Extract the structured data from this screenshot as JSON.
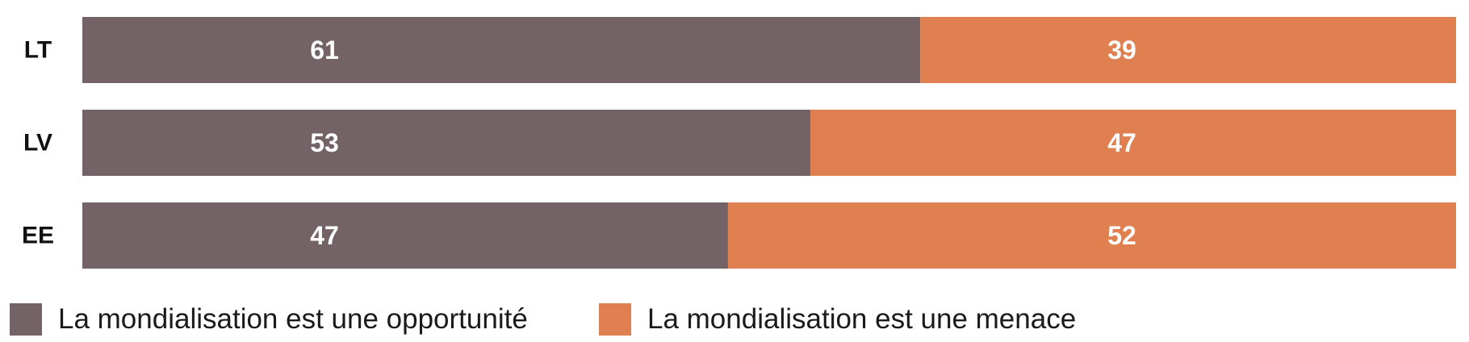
{
  "chart_data": {
    "type": "bar",
    "orientation": "horizontal",
    "stacked": true,
    "categories": [
      "LT",
      "LV",
      "EE"
    ],
    "series": [
      {
        "name": "La mondialisation est une opportunité",
        "values": [
          61,
          53,
          47
        ],
        "color": "#736366"
      },
      {
        "name": "La mondialisation est une menace",
        "values": [
          39,
          47,
          52
        ],
        "color": "#E07F4F"
      }
    ],
    "xlim": [
      0,
      100
    ],
    "grid": false,
    "legend": "bottom-left"
  }
}
